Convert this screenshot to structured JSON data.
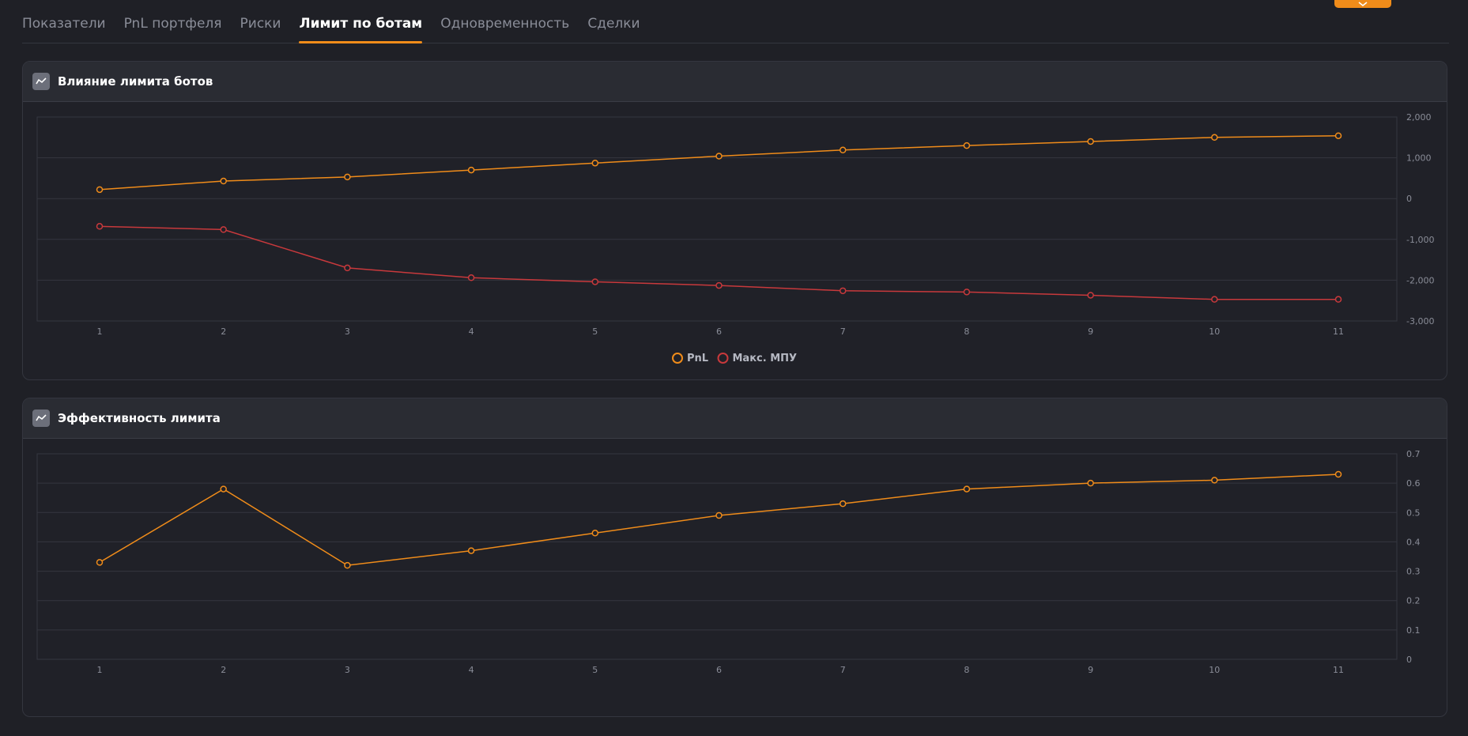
{
  "tabs": [
    {
      "label": "Показатели",
      "active": false
    },
    {
      "label": "PnL портфеля",
      "active": false
    },
    {
      "label": "Риски",
      "active": false
    },
    {
      "label": "Лимит по ботам",
      "active": true
    },
    {
      "label": "Одновременность",
      "active": false
    },
    {
      "label": "Сделки",
      "active": false
    }
  ],
  "top_button": {
    "icon": "chevron-down-icon",
    "color": "#f08c1a"
  },
  "panel1": {
    "title": "Влияние лимита ботов",
    "icon": "line-chart-icon"
  },
  "panel2": {
    "title": "Эффективность лимита",
    "icon": "line-chart-icon"
  },
  "colors": {
    "accent": "#f08c1a",
    "pnl": "#f08c1a",
    "mpu": "#c8393c",
    "grid": "#34363f",
    "tick": "#8a8d98"
  },
  "chart_data": [
    {
      "type": "line",
      "x": [
        1,
        2,
        3,
        4,
        5,
        6,
        7,
        8,
        9,
        10,
        11
      ],
      "ylim": [
        -3000,
        2000
      ],
      "yticks": [
        2000,
        1000,
        0,
        -1000,
        -2000,
        -3000
      ],
      "ytick_labels": [
        "2,000",
        "1,000",
        "0",
        "-1,000",
        "-2,000",
        "-3,000"
      ],
      "y_axis_side": "right",
      "grid": true,
      "legend": "bottom-center",
      "series": [
        {
          "name": "PnL",
          "color": "#f08c1a",
          "values": [
            220,
            430,
            530,
            700,
            870,
            1040,
            1190,
            1300,
            1400,
            1500,
            1540
          ]
        },
        {
          "name": "Макс. МПУ",
          "color": "#c8393c",
          "values": [
            -680,
            -760,
            -1700,
            -1940,
            -2040,
            -2130,
            -2260,
            -2290,
            -2370,
            -2470,
            -2470
          ]
        }
      ]
    },
    {
      "type": "line",
      "x": [
        1,
        2,
        3,
        4,
        5,
        6,
        7,
        8,
        9,
        10,
        11
      ],
      "ylim": [
        0,
        0.7
      ],
      "yticks": [
        0.7,
        0.6,
        0.5,
        0.4,
        0.3,
        0.2,
        0.1,
        0
      ],
      "ytick_labels": [
        "0.7",
        "0.6",
        "0.5",
        "0.4",
        "0.3",
        "0.2",
        "0.1",
        "0"
      ],
      "y_axis_side": "right",
      "grid": true,
      "series": [
        {
          "color": "#f08c1a",
          "values": [
            0.33,
            0.58,
            0.32,
            0.37,
            0.43,
            0.49,
            0.53,
            0.58,
            0.6,
            0.61,
            0.63
          ]
        }
      ]
    }
  ]
}
